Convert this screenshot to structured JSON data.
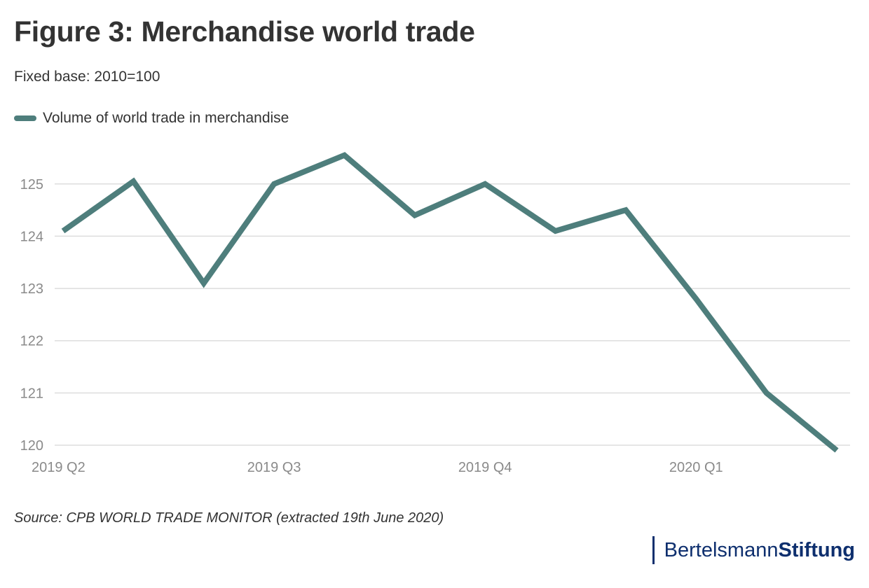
{
  "header": {
    "title": "Figure 3: Merchandise world trade",
    "subtitle": "Fixed base: 2010=100"
  },
  "legend": {
    "label": "Volume of world trade in merchandise"
  },
  "footer": {
    "source": "Source: CPB WORLD TRADE MONITOR (extracted 19th June 2020)",
    "logo_part1": "Bertelsmann",
    "logo_part2": "Stiftung"
  },
  "colors": {
    "line": "#4e7e7c",
    "grid": "#dddddd",
    "axis_text": "#8a8a8a",
    "logo": "#0e2f6e"
  },
  "chart_data": {
    "type": "line",
    "title": "Figure 3: Merchandise world trade",
    "subtitle": "Fixed base: 2010=100",
    "xlabel": "",
    "ylabel": "",
    "x_tick_labels": [
      "2019 Q2",
      "2019 Q3",
      "2019 Q4",
      "2020 Q1"
    ],
    "x_tick_positions": [
      0,
      3,
      6,
      9
    ],
    "x": [
      0,
      1,
      2,
      3,
      4,
      5,
      6,
      7,
      8,
      9,
      10,
      11
    ],
    "series": [
      {
        "name": "Volume of world trade in merchandise",
        "values": [
          124.1,
          125.05,
          123.1,
          125.0,
          125.55,
          124.4,
          125.0,
          124.1,
          124.5,
          122.8,
          121.0,
          119.9
        ]
      }
    ],
    "ylim": [
      120,
      125.6
    ],
    "yticks": [
      120,
      121,
      122,
      123,
      124,
      125
    ],
    "grid": true,
    "legend_position": "top-left"
  }
}
